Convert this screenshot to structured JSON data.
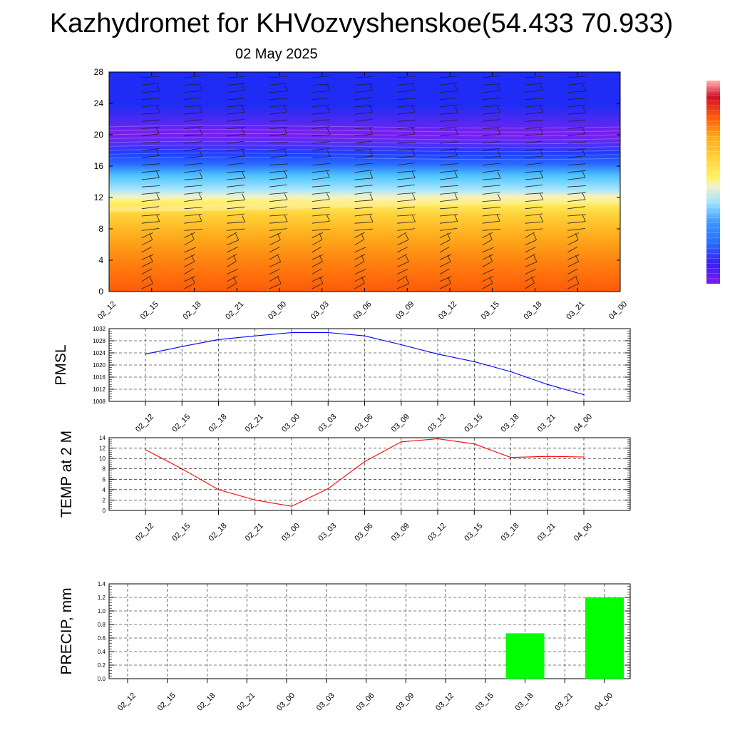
{
  "title": "Kazhydromet for KHVozvyshenskoe(54.433 70.933)",
  "date": "02 May 2025",
  "chart_data": [
    {
      "name": "vertical-profile",
      "type": "heatmap",
      "xlabels": [
        "02_12",
        "02_15",
        "02_18",
        "02_21",
        "03_00",
        "03_03",
        "03_06",
        "03_09",
        "03_12",
        "03_15",
        "03_18",
        "03_21",
        "04_00"
      ],
      "yticks": [
        0,
        4,
        8,
        12,
        16,
        20,
        24,
        28
      ],
      "ylim": [
        0,
        28
      ],
      "colorbar_colors": [
        "#7c1cf0",
        "#3a1ff5",
        "#1f3cff",
        "#2a6cff",
        "#3b97ff",
        "#4cc2ff",
        "#9fe3ff",
        "#f2f2c9",
        "#fff26a",
        "#ffd23a",
        "#ffac1c",
        "#ff8010",
        "#ff5a08",
        "#ef2a18",
        "#d20f25",
        "#ffb3b3"
      ],
      "wind_barbs": true
    },
    {
      "name": "pmsl",
      "type": "line",
      "ylabel": "PMSL",
      "categories": [
        "02_12",
        "02_15",
        "02_18",
        "02_21",
        "03_00",
        "03_03",
        "03_06",
        "03_09",
        "03_12",
        "03_15",
        "03_18",
        "03_21",
        "04_00"
      ],
      "values": [
        1023.6,
        1026.1,
        1028.4,
        1029.6,
        1030.7,
        1030.7,
        1029.6,
        1026.7,
        1023.6,
        1021.1,
        1017.8,
        1013.6,
        1010.2
      ],
      "ylim": [
        1008,
        1032
      ],
      "yticks": [
        1008,
        1012,
        1016,
        1020,
        1024,
        1028,
        1032
      ],
      "color": "#0000ff",
      "grid": true
    },
    {
      "name": "temp2m",
      "type": "line",
      "ylabel": "TEMP at 2 M",
      "categories": [
        "02_12",
        "02_15",
        "02_18",
        "02_21",
        "03_00",
        "03_03",
        "03_06",
        "03_09",
        "03_12",
        "03_15",
        "03_18",
        "03_21",
        "04_00"
      ],
      "values": [
        11.7,
        8.0,
        4.0,
        2.0,
        0.8,
        4.2,
        9.4,
        13.2,
        13.8,
        12.8,
        10.2,
        10.4,
        10.3
      ],
      "ylim": [
        0,
        14
      ],
      "yticks": [
        0,
        2,
        4,
        6,
        8,
        10,
        12,
        14
      ],
      "color": "#ff0000",
      "grid": true
    },
    {
      "name": "precip",
      "type": "bar",
      "ylabel": "PRECIP, mm",
      "categories": [
        "02_12",
        "02_15",
        "02_18",
        "02_21",
        "03_00",
        "03_03",
        "03_06",
        "03_09",
        "03_12",
        "03_15",
        "03_18",
        "03_21",
        "04_00"
      ],
      "values": [
        0,
        0,
        0,
        0,
        0,
        0,
        0,
        0,
        0,
        0,
        0.67,
        0,
        1.2
      ],
      "ylim": [
        0,
        1.4
      ],
      "yticks": [
        0.0,
        0.2,
        0.4,
        0.6,
        0.8,
        1.0,
        1.2,
        1.4
      ],
      "ytick_labels": [
        "0.0",
        "0.2",
        "0.4",
        "0.6",
        "0.8",
        "1.0",
        "1.2",
        "1.4"
      ],
      "color": "#00ff00",
      "grid": true
    }
  ]
}
